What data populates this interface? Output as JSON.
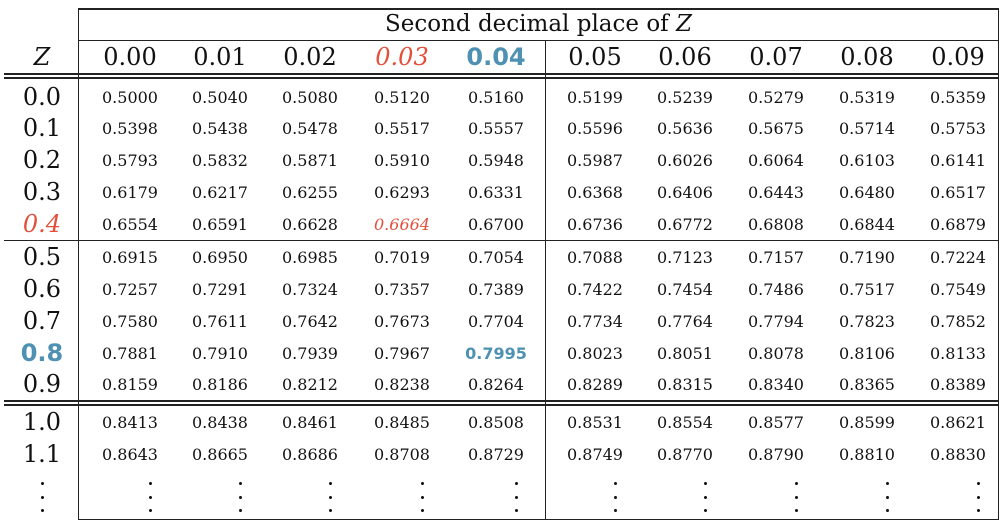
{
  "table": {
    "caption_prefix": "Second decimal place of ",
    "caption_var": "Z",
    "z_label": "Z",
    "columns": [
      "0.00",
      "0.01",
      "0.02",
      "0.03",
      "0.04",
      "0.05",
      "0.06",
      "0.07",
      "0.08",
      "0.09"
    ],
    "rows": [
      {
        "z": "0.0",
        "values": [
          "0.5000",
          "0.5040",
          "0.5080",
          "0.5120",
          "0.5160",
          "0.5199",
          "0.5239",
          "0.5279",
          "0.5319",
          "0.5359"
        ]
      },
      {
        "z": "0.1",
        "values": [
          "0.5398",
          "0.5438",
          "0.5478",
          "0.5517",
          "0.5557",
          "0.5596",
          "0.5636",
          "0.5675",
          "0.5714",
          "0.5753"
        ]
      },
      {
        "z": "0.2",
        "values": [
          "0.5793",
          "0.5832",
          "0.5871",
          "0.5910",
          "0.5948",
          "0.5987",
          "0.6026",
          "0.6064",
          "0.6103",
          "0.6141"
        ]
      },
      {
        "z": "0.3",
        "values": [
          "0.6179",
          "0.6217",
          "0.6255",
          "0.6293",
          "0.6331",
          "0.6368",
          "0.6406",
          "0.6443",
          "0.6480",
          "0.6517"
        ]
      },
      {
        "z": "0.4",
        "values": [
          "0.6554",
          "0.6591",
          "0.6628",
          "0.6664",
          "0.6700",
          "0.6736",
          "0.6772",
          "0.6808",
          "0.6844",
          "0.6879"
        ]
      },
      {
        "z": "0.5",
        "values": [
          "0.6915",
          "0.6950",
          "0.6985",
          "0.7019",
          "0.7054",
          "0.7088",
          "0.7123",
          "0.7157",
          "0.7190",
          "0.7224"
        ]
      },
      {
        "z": "0.6",
        "values": [
          "0.7257",
          "0.7291",
          "0.7324",
          "0.7357",
          "0.7389",
          "0.7422",
          "0.7454",
          "0.7486",
          "0.7517",
          "0.7549"
        ]
      },
      {
        "z": "0.7",
        "values": [
          "0.7580",
          "0.7611",
          "0.7642",
          "0.7673",
          "0.7704",
          "0.7734",
          "0.7764",
          "0.7794",
          "0.7823",
          "0.7852"
        ]
      },
      {
        "z": "0.8",
        "values": [
          "0.7881",
          "0.7910",
          "0.7939",
          "0.7967",
          "0.7995",
          "0.8023",
          "0.8051",
          "0.8078",
          "0.8106",
          "0.8133"
        ]
      },
      {
        "z": "0.9",
        "values": [
          "0.8159",
          "0.8186",
          "0.8212",
          "0.8238",
          "0.8264",
          "0.8289",
          "0.8315",
          "0.8340",
          "0.8365",
          "0.8389"
        ]
      },
      {
        "z": "1.0",
        "values": [
          "0.8413",
          "0.8438",
          "0.8461",
          "0.8485",
          "0.8508",
          "0.8531",
          "0.8554",
          "0.8577",
          "0.8599",
          "0.8621"
        ]
      },
      {
        "z": "1.1",
        "values": [
          "0.8643",
          "0.8665",
          "0.8686",
          "0.8708",
          "0.8729",
          "0.8749",
          "0.8770",
          "0.8790",
          "0.8810",
          "0.8830"
        ]
      }
    ],
    "highlights": {
      "red_color": "#e2503b",
      "blue_color": "#4f91b3",
      "red_row": "0.4",
      "red_column": "0.03",
      "blue_row": "0.8",
      "blue_column": "0.04"
    }
  }
}
